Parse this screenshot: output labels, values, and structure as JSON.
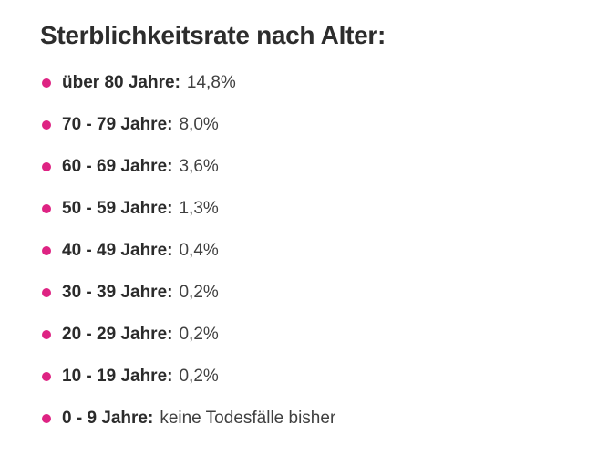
{
  "heading": {
    "text": "Sterblichkeitsrate nach Alter:"
  },
  "colors": {
    "bullet": "#de2383",
    "heading_text": "#2d2d2d",
    "label_text": "#2b2b2b",
    "value_text": "#404040",
    "background": "#ffffff"
  },
  "list": {
    "items": [
      {
        "label": "über 80 Jahre:",
        "value": "14,8%"
      },
      {
        "label": "70 - 79 Jahre:",
        "value": "8,0%"
      },
      {
        "label": "60 - 69 Jahre:",
        "value": "3,6%"
      },
      {
        "label": "50 - 59 Jahre:",
        "value": "1,3%"
      },
      {
        "label": "40 - 49 Jahre:",
        "value": "0,4%"
      },
      {
        "label": "30 - 39 Jahre:",
        "value": "0,2%"
      },
      {
        "label": "20 - 29 Jahre:",
        "value": "0,2%"
      },
      {
        "label": "10 - 19 Jahre:",
        "value": "0,2%"
      },
      {
        "label": "0 - 9 Jahre:",
        "value": "keine Todesfälle bisher"
      }
    ]
  }
}
